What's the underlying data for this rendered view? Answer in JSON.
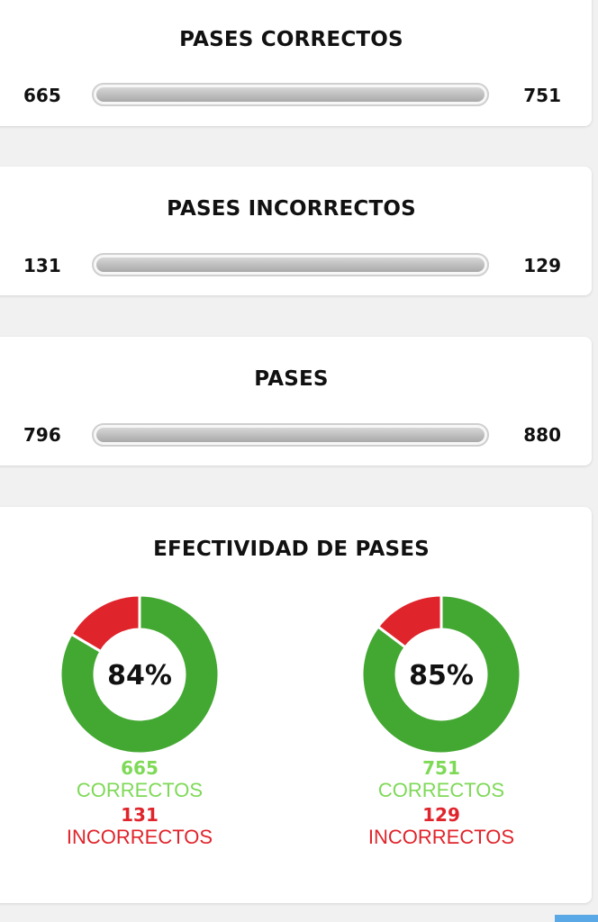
{
  "stats": [
    {
      "title": "PASES CORRECTOS",
      "left_value": "665",
      "right_value": "751"
    },
    {
      "title": "PASES INCORRECTOS",
      "left_value": "131",
      "right_value": "129"
    },
    {
      "title": "PASES",
      "left_value": "796",
      "right_value": "880"
    }
  ],
  "effectiveness": {
    "title": "EFECTIVIDAD DE PASES",
    "colors": {
      "correct": "#43a832",
      "incorrect": "#e0242b",
      "correct_label": "#7ed957"
    },
    "teams": [
      {
        "percent_label": "84%",
        "correct_value": "665",
        "correct_label": "CORRECTOS",
        "incorrect_value": "131",
        "incorrect_label": "INCORRECTOS",
        "correct_fraction": 0.835
      },
      {
        "percent_label": "85%",
        "correct_value": "751",
        "correct_label": "CORRECTOS",
        "incorrect_value": "129",
        "incorrect_label": "INCORRECTOS",
        "correct_fraction": 0.853
      }
    ]
  }
}
